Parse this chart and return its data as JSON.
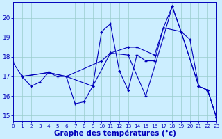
{
  "background_color": "#cceeff",
  "grid_color": "#99cccc",
  "line_color": "#0000bb",
  "xlabel": "Graphe des températures (°c)",
  "xlim": [
    0,
    23
  ],
  "ylim": [
    14.7,
    20.8
  ],
  "yticks": [
    15,
    16,
    17,
    18,
    19,
    20
  ],
  "xticks": [
    0,
    1,
    2,
    3,
    4,
    5,
    6,
    7,
    8,
    9,
    10,
    11,
    12,
    13,
    14,
    15,
    16,
    17,
    18,
    19,
    20,
    21,
    22,
    23
  ],
  "series1_x": [
    0,
    1,
    2,
    3,
    4,
    5,
    6,
    7,
    8,
    9,
    10,
    11,
    12,
    13,
    14,
    15,
    16,
    17,
    18,
    19,
    20,
    21,
    22,
    23
  ],
  "series1_y": [
    17.7,
    17.0,
    16.5,
    16.7,
    17.2,
    17.0,
    17.0,
    15.6,
    15.7,
    16.5,
    19.3,
    19.7,
    17.3,
    16.3,
    18.1,
    17.8,
    17.8,
    19.5,
    20.6,
    19.3,
    18.9,
    16.5,
    16.3,
    14.9
  ],
  "series2_x": [
    1,
    4,
    6,
    10,
    11,
    13,
    14,
    16,
    17,
    19,
    21,
    22,
    23
  ],
  "series2_y": [
    17.0,
    17.2,
    17.0,
    17.8,
    18.2,
    18.5,
    18.5,
    18.1,
    19.5,
    19.3,
    16.5,
    16.3,
    14.9
  ],
  "series3_x": [
    1,
    4,
    6,
    9,
    11,
    13,
    15,
    17,
    18,
    19,
    21,
    22,
    23
  ],
  "series3_y": [
    17.0,
    17.2,
    17.0,
    16.5,
    18.2,
    18.1,
    16.0,
    19.0,
    20.6,
    19.3,
    16.5,
    16.3,
    14.9
  ]
}
